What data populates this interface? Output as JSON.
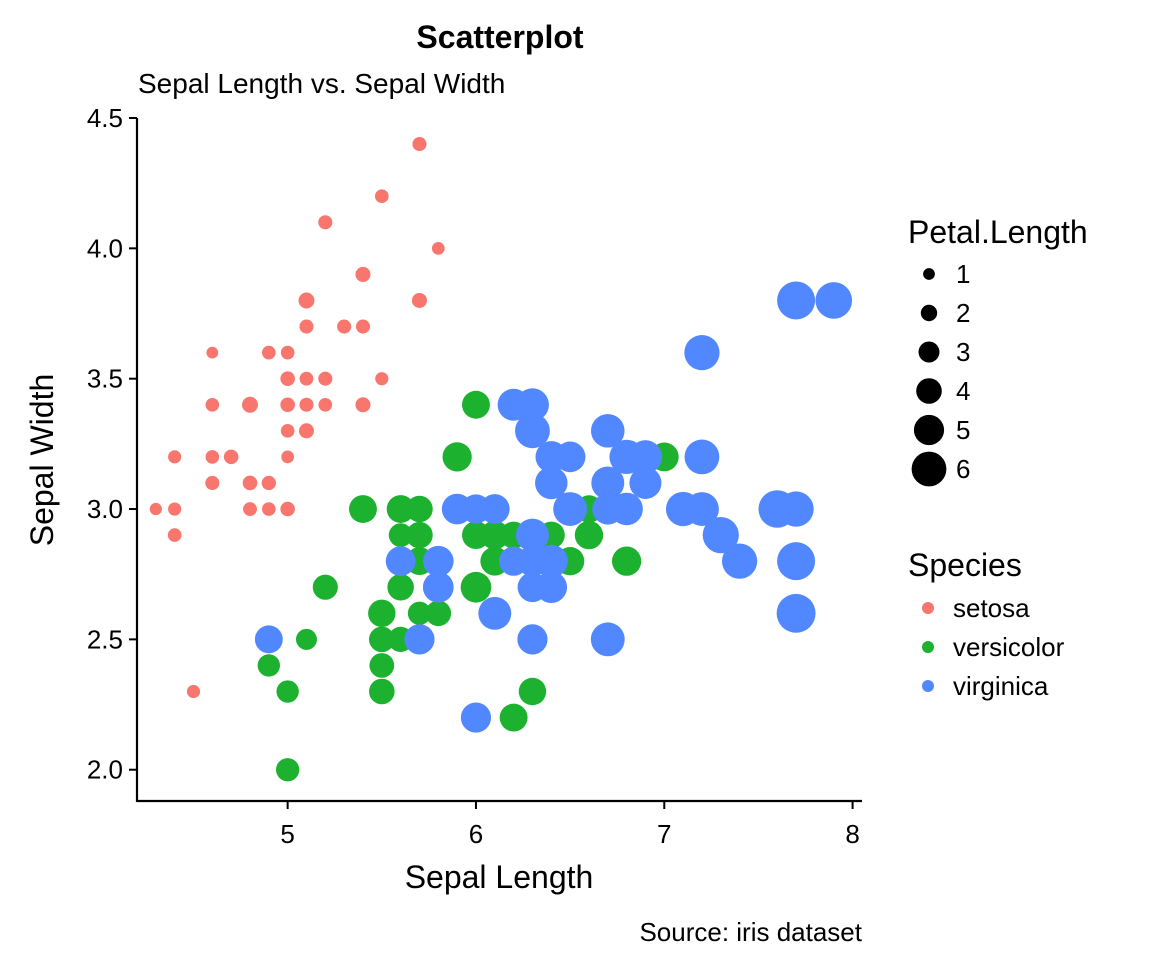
{
  "chart_data": {
    "type": "scatter",
    "title": "Scatterplot",
    "subtitle": "Sepal Length vs. Sepal Width",
    "caption": "Source: iris dataset",
    "xlabel": "Sepal Length",
    "ylabel": "Sepal Width",
    "xlim": [
      4.2,
      8.05
    ],
    "ylim": [
      1.88,
      4.5
    ],
    "x_ticks": [
      "5",
      "6",
      "7",
      "8"
    ],
    "y_ticks": [
      "2.0",
      "2.5",
      "3.0",
      "3.5",
      "4.0",
      "4.5"
    ],
    "grid": false,
    "legend_placement": "right",
    "size_legend": {
      "title": "Petal.Length",
      "labels": [
        "1",
        "2",
        "3",
        "4",
        "5",
        "6"
      ],
      "values": [
        1,
        2,
        3,
        4,
        5,
        6
      ],
      "color": "#000000"
    },
    "species_legend": {
      "title": "Species",
      "labels": [
        "setosa",
        "versicolor",
        "virginica"
      ],
      "colors": [
        "#F8766D",
        "#1CB12E",
        "#5288FF"
      ]
    },
    "series": [
      {
        "name": "setosa",
        "color": "#F8766D",
        "points": [
          [
            5.1,
            3.5,
            1.4
          ],
          [
            4.9,
            3.0,
            1.4
          ],
          [
            4.7,
            3.2,
            1.3
          ],
          [
            4.6,
            3.1,
            1.5
          ],
          [
            5.0,
            3.6,
            1.4
          ],
          [
            5.4,
            3.9,
            1.7
          ],
          [
            4.6,
            3.4,
            1.4
          ],
          [
            5.0,
            3.4,
            1.5
          ],
          [
            4.4,
            2.9,
            1.4
          ],
          [
            4.9,
            3.1,
            1.5
          ],
          [
            5.4,
            3.7,
            1.5
          ],
          [
            4.8,
            3.4,
            1.6
          ],
          [
            4.8,
            3.0,
            1.4
          ],
          [
            4.3,
            3.0,
            1.1
          ],
          [
            5.8,
            4.0,
            1.2
          ],
          [
            5.7,
            4.4,
            1.5
          ],
          [
            5.4,
            3.9,
            1.3
          ],
          [
            5.1,
            3.5,
            1.4
          ],
          [
            5.7,
            3.8,
            1.7
          ],
          [
            5.1,
            3.8,
            1.5
          ],
          [
            5.4,
            3.4,
            1.7
          ],
          [
            5.1,
            3.7,
            1.5
          ],
          [
            4.6,
            3.6,
            1.0
          ],
          [
            5.1,
            3.3,
            1.7
          ],
          [
            4.8,
            3.4,
            1.9
          ],
          [
            5.0,
            3.0,
            1.6
          ],
          [
            5.0,
            3.4,
            1.6
          ],
          [
            5.2,
            3.5,
            1.5
          ],
          [
            5.2,
            3.4,
            1.4
          ],
          [
            4.7,
            3.2,
            1.6
          ],
          [
            4.8,
            3.1,
            1.6
          ],
          [
            5.4,
            3.4,
            1.5
          ],
          [
            5.2,
            4.1,
            1.5
          ],
          [
            5.5,
            4.2,
            1.4
          ],
          [
            4.9,
            3.1,
            1.5
          ],
          [
            5.0,
            3.2,
            1.2
          ],
          [
            5.5,
            3.5,
            1.3
          ],
          [
            4.9,
            3.6,
            1.4
          ],
          [
            4.4,
            3.0,
            1.3
          ],
          [
            5.1,
            3.4,
            1.5
          ],
          [
            5.0,
            3.5,
            1.3
          ],
          [
            4.5,
            2.3,
            1.3
          ],
          [
            4.4,
            3.2,
            1.3
          ],
          [
            5.0,
            3.5,
            1.6
          ],
          [
            5.1,
            3.8,
            1.9
          ],
          [
            4.8,
            3.0,
            1.4
          ],
          [
            5.1,
            3.8,
            1.6
          ],
          [
            4.6,
            3.2,
            1.4
          ],
          [
            5.3,
            3.7,
            1.5
          ],
          [
            5.0,
            3.3,
            1.4
          ]
        ]
      },
      {
        "name": "versicolor",
        "color": "#1CB12E",
        "points": [
          [
            7.0,
            3.2,
            4.7
          ],
          [
            6.4,
            3.2,
            4.5
          ],
          [
            6.9,
            3.1,
            4.9
          ],
          [
            5.5,
            2.3,
            4.0
          ],
          [
            6.5,
            2.8,
            4.6
          ],
          [
            5.7,
            2.8,
            4.5
          ],
          [
            6.3,
            3.3,
            4.7
          ],
          [
            4.9,
            2.4,
            3.3
          ],
          [
            6.6,
            2.9,
            4.6
          ],
          [
            5.2,
            2.7,
            3.9
          ],
          [
            5.0,
            2.0,
            3.5
          ],
          [
            5.9,
            3.0,
            4.2
          ],
          [
            6.0,
            2.2,
            4.0
          ],
          [
            6.1,
            2.9,
            4.7
          ],
          [
            5.6,
            2.9,
            3.6
          ],
          [
            6.7,
            3.1,
            4.4
          ],
          [
            5.6,
            3.0,
            4.5
          ],
          [
            5.8,
            2.7,
            4.1
          ],
          [
            6.2,
            2.2,
            4.5
          ],
          [
            5.6,
            2.5,
            3.9
          ],
          [
            5.9,
            3.2,
            4.8
          ],
          [
            6.1,
            2.8,
            4.0
          ],
          [
            6.3,
            2.5,
            4.9
          ],
          [
            6.1,
            2.8,
            4.7
          ],
          [
            6.4,
            2.9,
            4.3
          ],
          [
            6.6,
            3.0,
            4.4
          ],
          [
            6.8,
            2.8,
            4.8
          ],
          [
            6.7,
            3.0,
            5.0
          ],
          [
            6.0,
            2.9,
            4.5
          ],
          [
            5.7,
            2.6,
            3.5
          ],
          [
            5.5,
            2.4,
            3.8
          ],
          [
            5.5,
            2.4,
            3.7
          ],
          [
            5.8,
            2.7,
            3.9
          ],
          [
            6.0,
            2.7,
            5.1
          ],
          [
            5.4,
            3.0,
            4.5
          ],
          [
            6.0,
            3.4,
            4.5
          ],
          [
            6.7,
            3.1,
            4.7
          ],
          [
            6.3,
            2.3,
            4.4
          ],
          [
            5.6,
            3.0,
            4.1
          ],
          [
            5.5,
            2.5,
            4.0
          ],
          [
            5.5,
            2.6,
            4.4
          ],
          [
            6.1,
            3.0,
            4.6
          ],
          [
            5.8,
            2.6,
            4.0
          ],
          [
            5.0,
            2.3,
            3.3
          ],
          [
            5.6,
            2.7,
            4.2
          ],
          [
            5.7,
            3.0,
            4.2
          ],
          [
            5.7,
            2.9,
            4.2
          ],
          [
            6.2,
            2.9,
            4.3
          ],
          [
            5.1,
            2.5,
            3.0
          ],
          [
            5.7,
            2.8,
            4.1
          ]
        ]
      },
      {
        "name": "virginica",
        "color": "#5288FF",
        "points": [
          [
            6.3,
            3.3,
            6.0
          ],
          [
            5.8,
            2.7,
            5.1
          ],
          [
            7.1,
            3.0,
            5.9
          ],
          [
            6.3,
            2.9,
            5.6
          ],
          [
            6.5,
            3.0,
            5.8
          ],
          [
            7.6,
            3.0,
            6.6
          ],
          [
            4.9,
            2.5,
            4.5
          ],
          [
            7.3,
            2.9,
            6.3
          ],
          [
            6.7,
            2.5,
            5.8
          ],
          [
            7.2,
            3.6,
            6.1
          ],
          [
            6.5,
            3.2,
            5.1
          ],
          [
            6.4,
            2.7,
            5.3
          ],
          [
            6.8,
            3.0,
            5.5
          ],
          [
            5.7,
            2.5,
            5.0
          ],
          [
            5.8,
            2.8,
            5.1
          ],
          [
            6.4,
            3.2,
            5.3
          ],
          [
            6.5,
            3.0,
            5.5
          ],
          [
            7.7,
            3.8,
            6.7
          ],
          [
            7.7,
            2.6,
            6.9
          ],
          [
            6.0,
            2.2,
            5.0
          ],
          [
            6.9,
            3.2,
            5.7
          ],
          [
            5.6,
            2.8,
            4.9
          ],
          [
            7.7,
            2.8,
            6.7
          ],
          [
            6.3,
            2.7,
            4.9
          ],
          [
            6.7,
            3.3,
            5.7
          ],
          [
            7.2,
            3.2,
            6.0
          ],
          [
            6.2,
            2.8,
            4.8
          ],
          [
            6.1,
            3.0,
            4.9
          ],
          [
            6.4,
            2.8,
            5.6
          ],
          [
            7.2,
            3.0,
            5.8
          ],
          [
            7.4,
            2.8,
            6.1
          ],
          [
            7.9,
            3.8,
            6.4
          ],
          [
            6.4,
            2.8,
            5.6
          ],
          [
            6.3,
            2.8,
            5.1
          ],
          [
            6.1,
            2.6,
            5.6
          ],
          [
            7.7,
            3.0,
            6.1
          ],
          [
            6.3,
            3.4,
            5.6
          ],
          [
            6.4,
            3.1,
            5.5
          ],
          [
            6.0,
            3.0,
            4.8
          ],
          [
            6.9,
            3.1,
            5.4
          ],
          [
            6.7,
            3.1,
            5.6
          ],
          [
            6.9,
            3.1,
            5.1
          ],
          [
            5.8,
            2.7,
            5.1
          ],
          [
            6.8,
            3.2,
            5.9
          ],
          [
            6.7,
            3.3,
            5.7
          ],
          [
            6.7,
            3.0,
            5.2
          ],
          [
            6.3,
            2.5,
            5.0
          ],
          [
            6.5,
            3.0,
            5.2
          ],
          [
            6.2,
            3.4,
            5.4
          ],
          [
            5.9,
            3.0,
            5.1
          ]
        ]
      }
    ]
  }
}
